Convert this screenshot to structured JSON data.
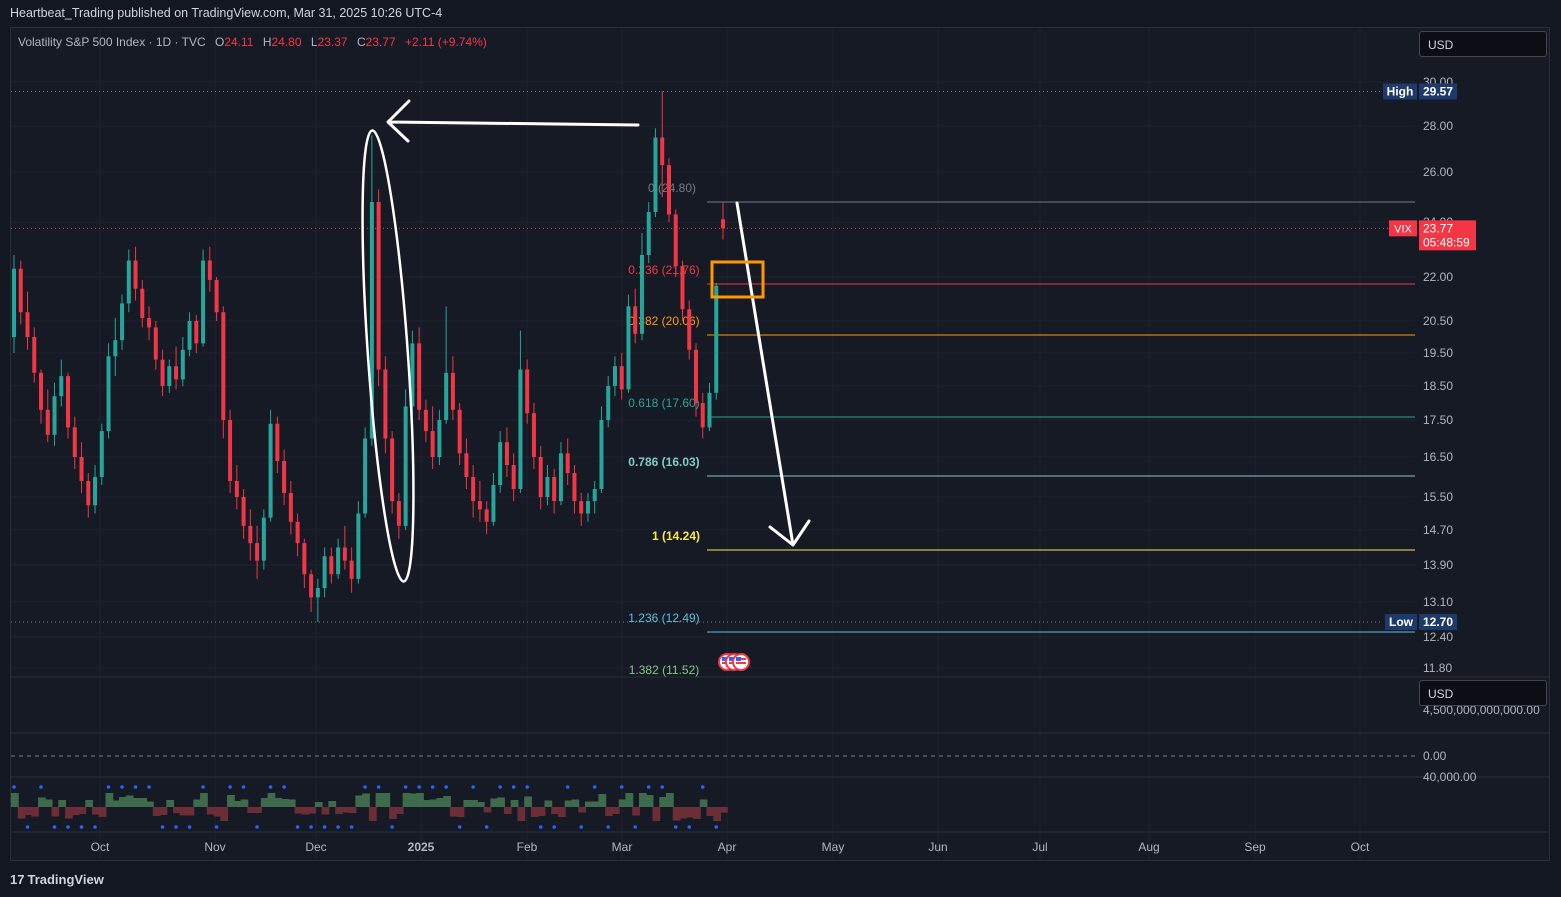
{
  "publish_bar": "Heartbeat_Trading published on TradingView.com, Mar 31, 2025 10:26 UTC-4",
  "branding": {
    "logo_glyph": "17",
    "name": "TradingView"
  },
  "legend": {
    "symbol": "Volatility S&P 500 Index · 1D · TVC",
    "o_label": "O",
    "o": "24.11",
    "h_label": "H",
    "h": "24.80",
    "l_label": "L",
    "l": "23.37",
    "c_label": "C",
    "c": "23.77",
    "change": "+2.11 (+9.74%)"
  },
  "currency": {
    "main": "USD",
    "sub": "USD"
  },
  "colors": {
    "up": "#26a69a",
    "down": "#f23645",
    "bg": "#161a25",
    "annotation": "#ffffff",
    "box": "#ff9800"
  },
  "chart_data": {
    "type": "candlestick",
    "symbol": "VIX",
    "timeframe": "1D",
    "price_axis": [
      "30.00",
      "28.00",
      "26.00",
      "24.00",
      "22.00",
      "20.50",
      "19.50",
      "18.50",
      "17.50",
      "16.50",
      "15.50",
      "14.70",
      "13.90",
      "13.10",
      "12.40",
      "11.80"
    ],
    "time_axis": [
      "Oct",
      "Nov",
      "Dec",
      "2025",
      "Feb",
      "Mar",
      "Apr",
      "May",
      "Jun",
      "Jul",
      "Aug",
      "Sep",
      "Oct"
    ],
    "last_price": {
      "symbol": "VIX",
      "value": "23.77",
      "countdown": "05:48:59"
    },
    "high": {
      "label": "High",
      "value": "29.57"
    },
    "low": {
      "label": "Low",
      "value": 12.7,
      "text": "12.70"
    },
    "fib_levels": [
      {
        "ratio": "0",
        "text": "0 (24.80)",
        "price": 24.8,
        "color": "#787b86"
      },
      {
        "ratio": "0.236",
        "text": "0.236 (21.76)",
        "price": 21.76,
        "color": "#f23645"
      },
      {
        "ratio": "0.382",
        "text": "0.382 (20.06)",
        "price": 20.06,
        "color": "#ff9800"
      },
      {
        "ratio": "0.618",
        "text": "0.618 (17.60)",
        "price": 17.6,
        "color": "#26a69a"
      },
      {
        "ratio": "0.786",
        "text": "0.786 (16.03)",
        "price": 16.03,
        "color": "#80cbc4"
      },
      {
        "ratio": "1",
        "text": "1 (14.24)",
        "price": 14.24,
        "color": "#fbe84d"
      },
      {
        "ratio": "1.236",
        "text": "1.236 (12.49)",
        "price": 12.49,
        "color": "#5bc0de"
      },
      {
        "ratio": "1.382",
        "text": "1.382 (11.52)",
        "price": 11.52,
        "color": "#81c784"
      }
    ],
    "volume_pane_axis": [
      "4,500,000,000,000.00",
      "0.00"
    ],
    "oscillator_pane_axis": [
      "40,000.00"
    ],
    "candles": [
      [
        20.0,
        22.8,
        19.5,
        22.3
      ],
      [
        22.3,
        22.6,
        20.4,
        20.8
      ],
      [
        20.8,
        21.5,
        19.6,
        20.0
      ],
      [
        20.0,
        20.3,
        18.6,
        18.9
      ],
      [
        18.9,
        19.0,
        17.4,
        17.8
      ],
      [
        17.8,
        18.4,
        16.9,
        17.1
      ],
      [
        17.1,
        18.6,
        16.8,
        18.2
      ],
      [
        18.2,
        19.3,
        17.9,
        18.8
      ],
      [
        18.8,
        18.9,
        17.0,
        17.3
      ],
      [
        17.3,
        17.6,
        16.2,
        16.5
      ],
      [
        16.5,
        16.9,
        15.6,
        15.9
      ],
      [
        15.9,
        16.1,
        15.0,
        15.3
      ],
      [
        15.3,
        16.3,
        15.1,
        16.0
      ],
      [
        16.0,
        17.4,
        15.8,
        17.2
      ],
      [
        17.2,
        19.8,
        17.0,
        19.4
      ],
      [
        19.4,
        20.6,
        18.8,
        19.9
      ],
      [
        19.9,
        21.4,
        19.6,
        21.1
      ],
      [
        21.1,
        23.0,
        20.8,
        22.6
      ],
      [
        22.6,
        23.1,
        21.2,
        21.6
      ],
      [
        21.6,
        21.9,
        20.3,
        20.6
      ],
      [
        20.6,
        21.0,
        19.9,
        20.3
      ],
      [
        20.3,
        20.5,
        19.0,
        19.3
      ],
      [
        19.3,
        19.6,
        18.2,
        18.5
      ],
      [
        18.5,
        19.3,
        18.3,
        19.1
      ],
      [
        19.1,
        19.7,
        18.4,
        18.7
      ],
      [
        18.7,
        20.0,
        18.5,
        19.6
      ],
      [
        19.6,
        20.8,
        19.4,
        20.5
      ],
      [
        20.5,
        20.7,
        19.5,
        19.8
      ],
      [
        19.8,
        23.0,
        19.7,
        22.6
      ],
      [
        22.6,
        23.1,
        21.5,
        21.9
      ],
      [
        21.9,
        22.0,
        20.5,
        20.8
      ],
      [
        20.8,
        21.0,
        17.0,
        17.5
      ],
      [
        17.5,
        17.8,
        15.6,
        15.9
      ],
      [
        15.9,
        16.3,
        15.2,
        15.5
      ],
      [
        15.5,
        15.7,
        14.5,
        14.8
      ],
      [
        14.8,
        15.2,
        14.0,
        14.4
      ],
      [
        14.4,
        14.8,
        13.6,
        14.0
      ],
      [
        14.0,
        15.2,
        13.8,
        15.0
      ],
      [
        15.0,
        17.8,
        14.9,
        17.4
      ],
      [
        17.4,
        17.6,
        16.1,
        16.4
      ],
      [
        16.4,
        16.7,
        15.3,
        15.6
      ],
      [
        15.6,
        15.9,
        14.6,
        14.9
      ],
      [
        14.9,
        15.1,
        14.1,
        14.4
      ],
      [
        14.4,
        14.5,
        13.4,
        13.7
      ],
      [
        13.7,
        13.8,
        12.9,
        13.2
      ],
      [
        13.2,
        13.6,
        12.7,
        13.4
      ],
      [
        13.4,
        14.3,
        13.2,
        14.1
      ],
      [
        14.1,
        14.3,
        13.5,
        13.7
      ],
      [
        13.7,
        14.5,
        13.6,
        14.3
      ],
      [
        14.3,
        14.8,
        13.8,
        14.0
      ],
      [
        14.0,
        14.3,
        13.3,
        13.6
      ],
      [
        13.6,
        15.4,
        13.5,
        15.1
      ],
      [
        15.1,
        17.3,
        15.0,
        17.0
      ],
      [
        17.0,
        27.6,
        16.8,
        24.8
      ],
      [
        24.8,
        25.3,
        18.5,
        19.0
      ],
      [
        19.0,
        19.4,
        16.6,
        17.0
      ],
      [
        17.0,
        17.2,
        15.1,
        15.4
      ],
      [
        15.4,
        15.6,
        14.5,
        14.8
      ],
      [
        14.8,
        18.4,
        14.7,
        17.9
      ],
      [
        17.9,
        20.2,
        17.6,
        19.8
      ],
      [
        19.8,
        20.3,
        17.5,
        17.8
      ],
      [
        17.8,
        18.1,
        16.9,
        17.2
      ],
      [
        17.2,
        17.9,
        16.2,
        16.5
      ],
      [
        16.5,
        17.8,
        16.3,
        17.5
      ],
      [
        17.5,
        21.0,
        17.4,
        18.9
      ],
      [
        18.9,
        19.4,
        17.5,
        17.8
      ],
      [
        17.8,
        18.0,
        16.3,
        16.6
      ],
      [
        16.6,
        17.0,
        15.7,
        16.0
      ],
      [
        16.0,
        16.3,
        15.0,
        15.4
      ],
      [
        15.4,
        15.9,
        14.9,
        15.2
      ],
      [
        15.2,
        15.4,
        14.6,
        14.9
      ],
      [
        14.9,
        16.1,
        14.8,
        15.8
      ],
      [
        15.8,
        17.2,
        15.6,
        16.9
      ],
      [
        16.9,
        17.3,
        16.0,
        16.3
      ],
      [
        16.3,
        16.6,
        15.4,
        15.7
      ],
      [
        15.7,
        20.2,
        15.6,
        19.0
      ],
      [
        19.0,
        19.3,
        17.4,
        17.7
      ],
      [
        17.7,
        18.0,
        16.2,
        16.5
      ],
      [
        16.5,
        16.8,
        15.2,
        15.5
      ],
      [
        15.5,
        16.3,
        15.3,
        16.0
      ],
      [
        16.0,
        16.2,
        15.1,
        15.4
      ],
      [
        15.4,
        16.9,
        15.3,
        16.6
      ],
      [
        16.6,
        17.0,
        15.8,
        16.1
      ],
      [
        16.1,
        16.3,
        15.1,
        15.4
      ],
      [
        15.4,
        15.6,
        14.8,
        15.1
      ],
      [
        15.1,
        15.6,
        14.9,
        15.4
      ],
      [
        15.4,
        15.9,
        15.1,
        15.7
      ],
      [
        15.7,
        17.9,
        15.6,
        17.5
      ],
      [
        17.5,
        18.8,
        17.3,
        18.5
      ],
      [
        18.5,
        19.4,
        18.2,
        19.1
      ],
      [
        19.1,
        19.5,
        18.1,
        18.4
      ],
      [
        18.4,
        21.4,
        18.3,
        21.0
      ],
      [
        21.0,
        21.6,
        19.8,
        20.1
      ],
      [
        20.1,
        23.6,
        19.9,
        22.8
      ],
      [
        22.8,
        24.8,
        22.5,
        24.4
      ],
      [
        24.4,
        27.9,
        24.2,
        27.5
      ],
      [
        27.5,
        29.6,
        25.0,
        26.3
      ],
      [
        26.3,
        26.6,
        24.0,
        24.3
      ],
      [
        24.3,
        24.5,
        22.0,
        22.4
      ],
      [
        22.4,
        22.6,
        20.5,
        20.9
      ],
      [
        20.9,
        21.2,
        19.3,
        19.6
      ],
      [
        19.6,
        19.8,
        17.6,
        18.0
      ],
      [
        18.0,
        18.3,
        17.0,
        17.3
      ],
      [
        17.3,
        18.6,
        17.2,
        18.3
      ],
      [
        18.3,
        21.8,
        18.1,
        21.7
      ],
      [
        24.11,
        24.8,
        23.37,
        23.77
      ]
    ]
  }
}
